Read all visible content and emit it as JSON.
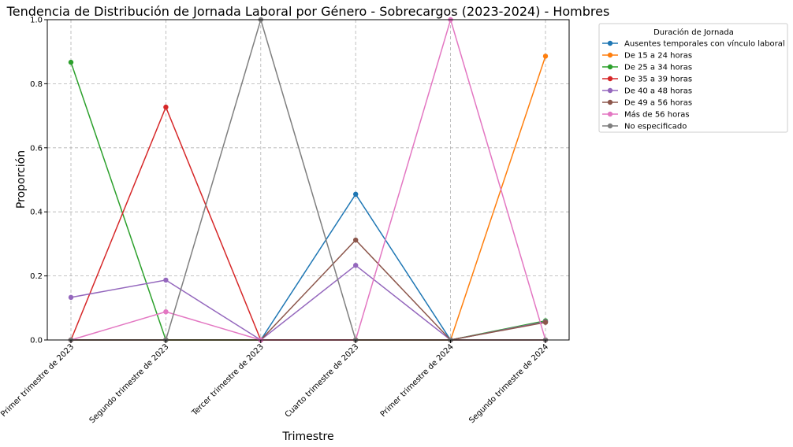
{
  "chart_data": {
    "type": "line",
    "title": "Tendencia de Distribución de Jornada Laboral por Género - Sobrecargos (2023-2024) - Hombres",
    "xlabel": "Trimestre",
    "ylabel": "Proporción",
    "ylim": [
      0,
      1
    ],
    "yticks": [
      "0.0",
      "0.2",
      "0.4",
      "0.6",
      "0.8",
      "1.0"
    ],
    "grid": true,
    "categories": [
      "Primer trimestre de 2023",
      "Segundo trimestre de 2023",
      "Tercer trimestre de 2023",
      "Cuarto trimestre de 2023",
      "Primer trimestre de 2024",
      "Segundo trimestre de 2024"
    ],
    "legend_title": "Duración de Jornada",
    "legend_position": "outside-top-right",
    "series": [
      {
        "name": "Ausentes temporales con vínculo laboral",
        "color": "#1f77b4",
        "values": [
          0,
          0,
          0,
          0.455,
          0,
          0.057
        ]
      },
      {
        "name": "De 15 a 24 horas",
        "color": "#ff7f0e",
        "values": [
          0,
          0,
          0,
          0,
          0,
          0.886
        ]
      },
      {
        "name": "De 25 a 34 horas",
        "color": "#2ca02c",
        "values": [
          0.867,
          0,
          0,
          0,
          0,
          0.06
        ]
      },
      {
        "name": "De 35 a 39 horas",
        "color": "#d62728",
        "values": [
          0,
          0.727,
          0,
          0,
          0,
          0
        ]
      },
      {
        "name": "De 40 a 48 horas",
        "color": "#9467bd",
        "values": [
          0.133,
          0.187,
          0,
          0.233,
          0,
          0.057
        ]
      },
      {
        "name": "De 49 a 56 horas",
        "color": "#8c564b",
        "values": [
          0,
          0,
          0,
          0.312,
          0,
          0.055
        ]
      },
      {
        "name": "Más de 56 horas",
        "color": "#e377c2",
        "values": [
          0,
          0.088,
          0,
          0,
          1.0,
          0
        ]
      },
      {
        "name": "No especificado",
        "color": "#7f7f7f",
        "values": [
          0,
          0,
          1.0,
          0,
          0,
          0
        ]
      }
    ]
  }
}
